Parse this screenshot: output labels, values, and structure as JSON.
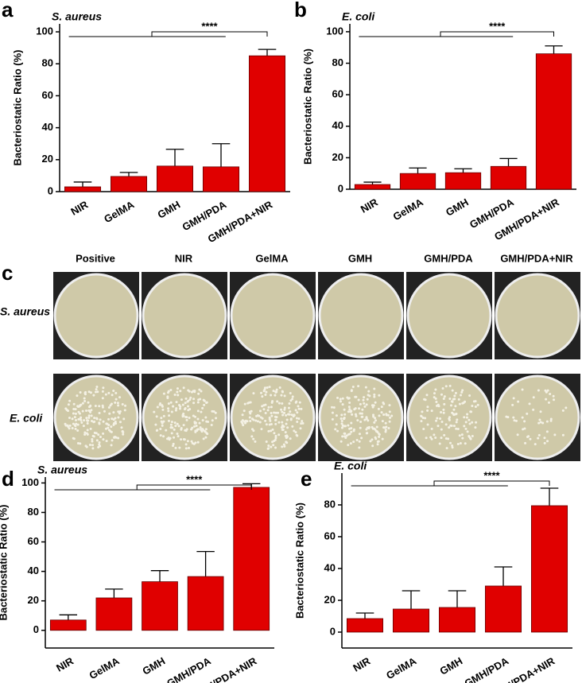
{
  "chart_data": [
    {
      "type": "bar",
      "panel": "a",
      "title": "S. aureus",
      "y_label": "Bacteriostatic Ratio (%)",
      "significance": "****",
      "categories": [
        "NIR",
        "GelMA",
        "GMH",
        "GMH/PDA",
        "GMH/PDA+NIR"
      ],
      "values": [
        3,
        9.5,
        16,
        15.5,
        85
      ],
      "errors": [
        3,
        2.5,
        10.5,
        14.5,
        4
      ],
      "color": "#e00000",
      "ylim": [
        0,
        105
      ],
      "yticks": [
        0,
        20,
        40,
        60,
        80,
        100
      ]
    },
    {
      "type": "bar",
      "panel": "b",
      "title": "E. coli",
      "y_label": "Bacteriostatic Ratio (%)",
      "significance": "****",
      "categories": [
        "NIR",
        "GelMA",
        "GMH",
        "GMH/PDA",
        "GMH/PDA+NIR"
      ],
      "values": [
        3,
        10,
        10.5,
        14.5,
        86
      ],
      "errors": [
        1.5,
        3.5,
        2.5,
        5,
        5
      ],
      "color": "#e00000",
      "ylim": [
        0,
        105
      ],
      "yticks": [
        0,
        20,
        40,
        60,
        80,
        100
      ]
    },
    {
      "type": "bar",
      "panel": "d",
      "title": "S. aureus",
      "y_label": "Bacteriostatic Ratio (%)",
      "significance": "****",
      "categories": [
        "NIR",
        "GelMA",
        "GMH",
        "GMH/PDA",
        "GMH/PDA+NIR"
      ],
      "values": [
        7,
        22,
        33,
        36.5,
        97
      ],
      "errors": [
        3.5,
        6,
        7.5,
        17,
        2.5
      ],
      "color": "#e00000",
      "ylim": [
        -12,
        104
      ],
      "yticks": [
        0,
        20,
        40,
        60,
        80,
        100
      ]
    },
    {
      "type": "bar",
      "panel": "e",
      "title": "E. coli",
      "y_label": "Bacteriostatic Ratio (%)",
      "significance": "****",
      "categories": [
        "NIR",
        "GelMA",
        "GMH",
        "GMH/PDA",
        "GMH/PDA+NIR"
      ],
      "values": [
        8.5,
        14.5,
        15.5,
        29,
        79.5
      ],
      "errors": [
        3.5,
        11.5,
        10.5,
        12,
        11
      ],
      "color": "#e00000",
      "ylim": [
        -10,
        100
      ],
      "yticks": [
        0,
        20,
        40,
        60,
        80
      ]
    }
  ],
  "panel_c": {
    "label": "c",
    "columns": [
      "Positive",
      "NIR",
      "GelMA",
      "GMH",
      "GMH/PDA",
      "GMH/PDA+NIR"
    ],
    "rows": [
      "S. aureus",
      "E. coli"
    ]
  }
}
